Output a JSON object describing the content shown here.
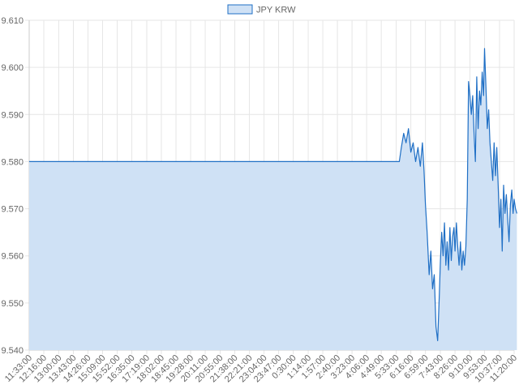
{
  "chart_data": {
    "type": "area",
    "title": "",
    "xlabel": "",
    "ylabel": "",
    "ylim": [
      9.54,
      9.61
    ],
    "y_ticks": [
      "9.540",
      "9.550",
      "9.560",
      "9.570",
      "9.580",
      "9.590",
      "9.600",
      "9.610"
    ],
    "x_tick_labels": [
      "11:33:00",
      "12:16:00",
      "13:00:00",
      "13:43:00",
      "14:26:00",
      "15:09:00",
      "15:52:00",
      "16:35:00",
      "17:19:00",
      "18:02:00",
      "18:45:00",
      "19:28:00",
      "20:11:00",
      "20:55:00",
      "21:38:00",
      "22:21:00",
      "23:04:00",
      "23:47:00",
      "0:30:00",
      "1:14:00",
      "1:57:00",
      "2:40:00",
      "3:23:00",
      "4:06:00",
      "4:49:00",
      "5:33:00",
      "6:16:00",
      "6:59:00",
      "7:43:00",
      "8:26:00",
      "9:10:00",
      "9:53:00",
      "10:37:00",
      "11:20:00"
    ],
    "grid": true,
    "legend_position": "top-center",
    "colors": {
      "line": "#1f6fc5",
      "fill": "#cfe1f5",
      "grid": "#e6e6e6"
    },
    "series": [
      {
        "name": "JPY KRW",
        "x": [
          "11:33:00",
          "12:16:00",
          "13:00:00",
          "13:43:00",
          "14:26:00",
          "15:09:00",
          "15:52:00",
          "16:35:00",
          "17:19:00",
          "18:02:00",
          "18:45:00",
          "19:28:00",
          "20:11:00",
          "20:55:00",
          "21:38:00",
          "22:21:00",
          "23:04:00",
          "23:47:00",
          "0:30:00",
          "1:14:00",
          "1:57:00",
          "2:40:00",
          "3:23:00",
          "4:06:00",
          "4:49:00",
          "5:33:00",
          "5:42:00",
          "5:48:00",
          "5:55:00",
          "6:02:00",
          "6:09:00",
          "6:16:00",
          "6:23:00",
          "6:30:00",
          "6:37:00",
          "6:44:00",
          "6:50:00",
          "6:55:00",
          "6:59:00",
          "7:04:00",
          "7:10:00",
          "7:15:00",
          "7:20:00",
          "7:25:00",
          "7:30:00",
          "7:35:00",
          "7:40:00",
          "7:43:00",
          "7:47:00",
          "7:51:00",
          "7:55:00",
          "7:59:00",
          "8:03:00",
          "8:07:00",
          "8:11:00",
          "8:15:00",
          "8:19:00",
          "8:23:00",
          "8:26:00",
          "8:30:00",
          "8:34:00",
          "8:38:00",
          "8:42:00",
          "8:46:00",
          "8:50:00",
          "8:54:00",
          "8:58:00",
          "9:02:00",
          "9:06:00",
          "9:10:00",
          "9:14:00",
          "9:18:00",
          "9:22:00",
          "9:26:00",
          "9:30:00",
          "9:34:00",
          "9:38:00",
          "9:42:00",
          "9:46:00",
          "9:50:00",
          "9:53:00",
          "9:57:00",
          "10:01:00",
          "10:05:00",
          "10:09:00",
          "10:13:00",
          "10:17:00",
          "10:21:00",
          "10:25:00",
          "10:29:00",
          "10:33:00",
          "10:37:00",
          "10:41:00",
          "10:45:00",
          "10:49:00",
          "10:53:00",
          "10:57:00",
          "11:01:00",
          "11:05:00",
          "11:09:00",
          "11:13:00",
          "11:17:00",
          "11:20:00",
          "11:24:00",
          "11:28:00"
        ],
        "values": [
          9.58,
          9.58,
          9.58,
          9.58,
          9.58,
          9.58,
          9.58,
          9.58,
          9.58,
          9.58,
          9.58,
          9.58,
          9.58,
          9.58,
          9.58,
          9.58,
          9.58,
          9.58,
          9.58,
          9.58,
          9.58,
          9.58,
          9.58,
          9.58,
          9.58,
          9.58,
          9.58,
          9.583,
          9.586,
          9.584,
          9.587,
          9.582,
          9.584,
          9.58,
          9.583,
          9.579,
          9.584,
          9.578,
          9.571,
          9.565,
          9.556,
          9.561,
          9.553,
          9.556,
          9.545,
          9.542,
          9.552,
          9.559,
          9.565,
          9.56,
          9.567,
          9.558,
          9.563,
          9.557,
          9.566,
          9.559,
          9.564,
          9.566,
          9.561,
          9.567,
          9.562,
          9.558,
          9.563,
          9.557,
          9.561,
          9.558,
          9.562,
          9.572,
          9.597,
          9.594,
          9.59,
          9.594,
          9.586,
          9.58,
          9.598,
          9.587,
          9.595,
          9.592,
          9.599,
          9.594,
          9.604,
          9.596,
          9.587,
          9.591,
          9.584,
          9.58,
          9.576,
          9.584,
          9.577,
          9.583,
          9.575,
          9.566,
          9.572,
          9.561,
          9.575,
          9.569,
          9.573,
          9.568,
          9.563,
          9.571,
          9.574,
          9.569,
          9.572,
          9.57,
          9.569
        ]
      }
    ]
  }
}
